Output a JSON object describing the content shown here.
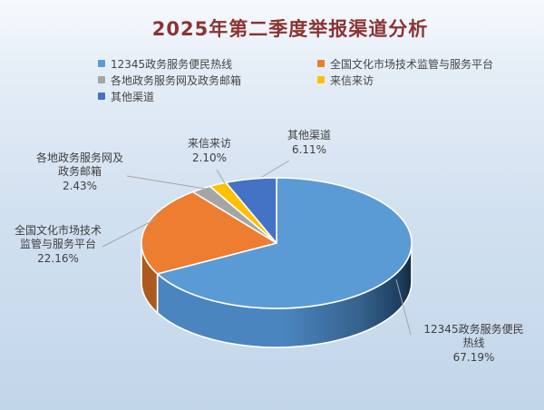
{
  "chart_data": {
    "type": "pie",
    "style": "pie3d",
    "title": "2025年第二季度举报渠道分析",
    "legend_position": "top",
    "value_format": "percent",
    "slices": [
      {
        "label": "12345政务服务便民热线",
        "value": 67.19,
        "pct_label": "67.19%",
        "color": "#5B9BD5",
        "side_color": "#3F76A8"
      },
      {
        "label": "全国文化市场技术监管与服务平台",
        "value": 22.16,
        "pct_label": "22.16%",
        "color": "#ED7D31",
        "side_color": "#AC5A1E"
      },
      {
        "label": "各地政务服务网及政务邮箱",
        "value": 2.43,
        "pct_label": "2.43%",
        "color": "#A5A5A5",
        "side_color": "#7B7B7B"
      },
      {
        "label": "来信来访",
        "value": 2.1,
        "pct_label": "2.10%",
        "color": "#FFC000",
        "side_color": "#BC8C00"
      },
      {
        "label": "其他渠道",
        "value": 6.11,
        "pct_label": "6.11%",
        "color": "#4472C4",
        "side_color": "#2F528F"
      }
    ],
    "callouts": [
      {
        "text": "12345政务服务便民\n热线",
        "pct": "67.19%"
      },
      {
        "text": "全国文化市场技术\n监管与服务平台",
        "pct": "22.16%"
      },
      {
        "text": "各地政务服务网及\n政务邮箱",
        "pct": "2.43%"
      },
      {
        "text": "来信来访",
        "pct": "2.10%"
      },
      {
        "text": "其他渠道",
        "pct": "6.11%"
      }
    ],
    "colors": {
      "background_top": "#f6fafd",
      "background_bottom": "#c2d6ea",
      "title_text": "#8c3331",
      "label_text": "#3f3f3f",
      "leader_line": "#A6A6A6"
    }
  }
}
